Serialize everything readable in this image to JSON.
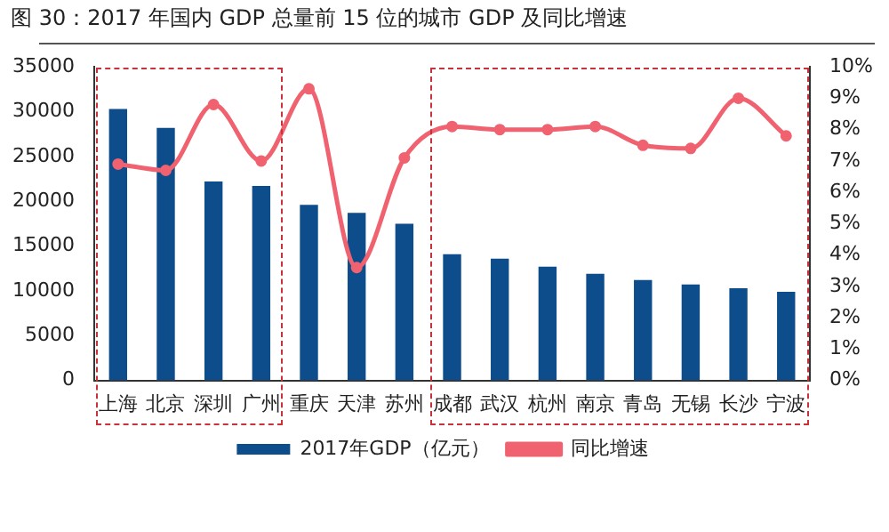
{
  "chart_data": {
    "type": "bar",
    "title": "图 30：2017 年国内 GDP 总量前 15 位的城市 GDP 及同比增速",
    "categories": [
      "上海",
      "北京",
      "深圳",
      "广州",
      "重庆",
      "天津",
      "苏州",
      "成都",
      "武汉",
      "杭州",
      "南京",
      "青岛",
      "无锡",
      "长沙",
      "宁波"
    ],
    "series": [
      {
        "name": "2017年GDP（亿元）",
        "color": "#0e4d8c",
        "values": [
          30300,
          28200,
          22200,
          21700,
          19600,
          18700,
          17500,
          14100,
          13600,
          12700,
          11900,
          11200,
          10700,
          10300,
          9900
        ]
      },
      {
        "name": "同比增速",
        "type": "line",
        "axis": "y2",
        "color": "#f0626f",
        "values": [
          6.9,
          6.7,
          8.8,
          7.0,
          9.3,
          3.6,
          7.1,
          8.1,
          8.0,
          8.0,
          8.1,
          7.5,
          7.4,
          9.0,
          7.8
        ]
      }
    ],
    "ylim": [
      0,
      35000
    ],
    "yticks": [
      0,
      5000,
      10000,
      15000,
      20000,
      25000,
      30000,
      35000
    ],
    "y2lim": [
      0,
      10
    ],
    "y2ticks": [
      {
        "value": 0,
        "label": "0%"
      },
      {
        "value": 1,
        "label": "1%"
      },
      {
        "value": 2,
        "label": "2%"
      },
      {
        "value": 3,
        "label": "3%"
      },
      {
        "value": 4,
        "label": "4%"
      },
      {
        "value": 5,
        "label": "5%"
      },
      {
        "value": 6,
        "label": "6%"
      },
      {
        "value": 7,
        "label": "7%"
      },
      {
        "value": 8,
        "label": "8%"
      },
      {
        "value": 9,
        "label": "9%"
      },
      {
        "value": 10,
        "label": "10%"
      }
    ],
    "grid": false,
    "legend": "bottom",
    "marker": "circle",
    "line_style": "solid"
  }
}
